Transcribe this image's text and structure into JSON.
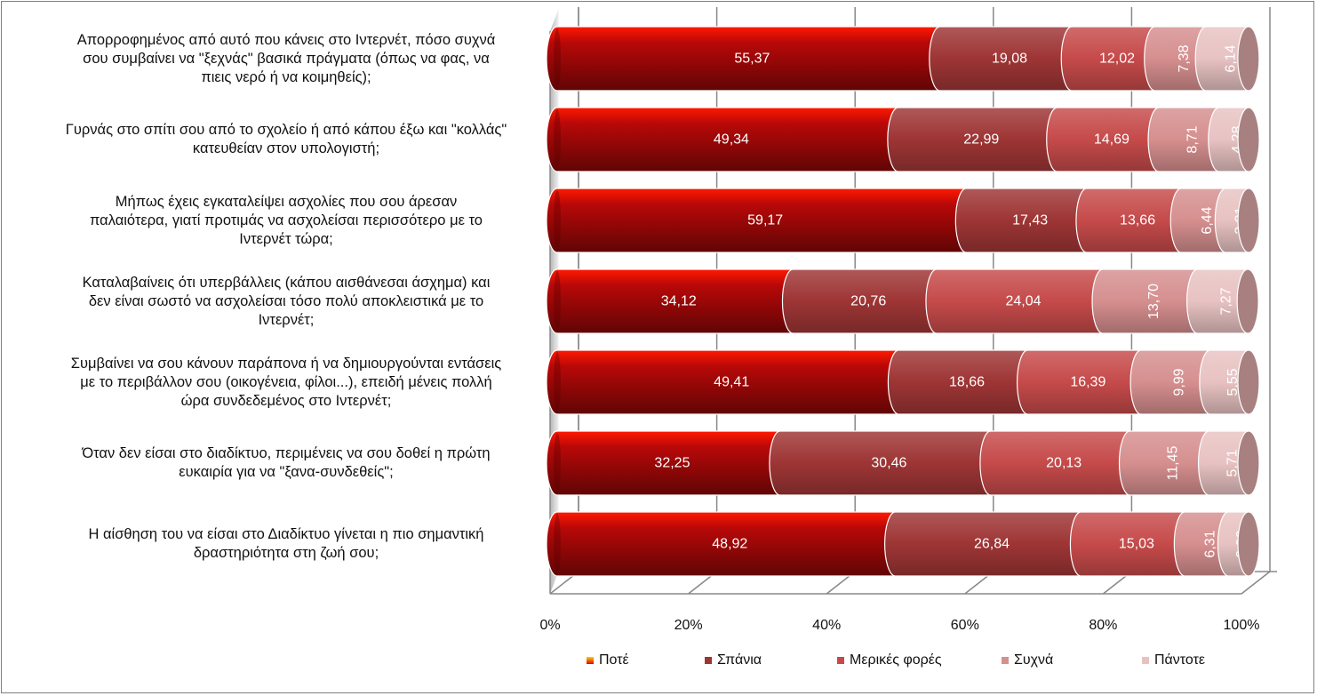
{
  "chart_data": {
    "type": "bar",
    "orientation": "horizontal",
    "stacked": "percent",
    "title": "",
    "xlabel": "",
    "ylabel": "",
    "xlim": [
      0,
      100
    ],
    "x_ticks": [
      "0%",
      "20%",
      "40%",
      "60%",
      "80%",
      "100%"
    ],
    "grid": true,
    "legend_position": "bottom",
    "categories": [
      "Απορροφημένος από αυτό που κάνεις στο Ιντερνέτ, πόσο συχνά σου συμβαίνει να \"ξεχνάς\" βασικά πράγματα (όπως να φας, να πιεις νερό ή να κοιμηθείς);",
      "Γυρνάς στο σπίτι σου από το σχολείο ή από κάπου έξω και \"κολλάς\" κατευθείαν στον υπολογιστή;",
      "Μήπως έχεις εγκαταλείψει ασχολίες που σου άρεσαν παλαιότερα, γιατί προτιμάς να ασχολείσαι περισσότερο με το Ιντερνέτ τώρα;",
      "Καταλαβαίνεις ότι υπερβάλλεις (κάπου αισθάνεσαι άσχημα) και δεν είναι σωστό να ασχολείσαι τόσο πολύ αποκλειστικά με το Ιντερνέτ;",
      "Συμβαίνει να σου κάνουν παράπονα ή να δημιουργούνται εντάσεις με το περιβάλλον σου (οικογένεια, φίλοι...), επειδή μένεις πολλή ώρα συνδεδεμένος στο Ιντερνέτ;",
      "Όταν δεν είσαι στο διαδίκτυο, περιμένεις να σου δοθεί η πρώτη ευκαιρία για να \"ξανα-συνδεθείς\";",
      "Η αίσθηση του να είσαι στο Διαδίκτυο γίνεται η πιο σημαντική δραστηριότητα στη ζωή σου;"
    ],
    "category_lines": [
      [
        "Απορροφημένος από αυτό που κάνεις στο Ιντερνέτ, πόσο συχνά",
        "σου συμβαίνει να \"ξεχνάς\" βασικά πράγματα (όπως να φας, να",
        "πιεις νερό ή να κοιμηθείς);"
      ],
      [
        "Γυρνάς στο σπίτι σου από το σχολείο ή από κάπου έξω και \"κολλάς\"",
        "κατευθείαν στον υπολογιστή;"
      ],
      [
        "Μήπως έχεις εγκαταλείψει ασχολίες που σου άρεσαν",
        "παλαιότερα, γιατί προτιμάς να ασχολείσαι περισσότερο με το",
        "Ιντερνέτ τώρα;"
      ],
      [
        "Καταλαβαίνεις ότι υπερβάλλεις (κάπου αισθάνεσαι άσχημα) και",
        "δεν είναι σωστό να ασχολείσαι τόσο πολύ αποκλειστικά με το",
        "Ιντερνέτ;"
      ],
      [
        "Συμβαίνει να σου κάνουν παράπονα ή να δημιουργούνται εντάσεις",
        "με το περιβάλλον σου (οικογένεια, φίλοι...), επειδή μένεις πολλή",
        "ώρα συνδεδεμένος στο Ιντερνέτ;"
      ],
      [
        "Όταν δεν είσαι στο διαδίκτυο, περιμένεις να σου δοθεί η πρώτη",
        "ευκαιρία για να \"ξανα-συνδεθείς\";"
      ],
      [
        "Η αίσθηση του να είσαι στο Διαδίκτυο γίνεται η πιο σημαντική",
        "δραστηριότητα στη ζωή σου;"
      ]
    ],
    "series": [
      {
        "name": "Ποτέ",
        "color": "#8b0d0d",
        "values": [
          55.37,
          49.34,
          59.17,
          34.12,
          49.41,
          32.25,
          48.92
        ],
        "labels": [
          "55,37",
          "49,34",
          "59,17",
          "34,12",
          "49,41",
          "32,25",
          "48,92"
        ],
        "label_rotated": false
      },
      {
        "name": "Σπάνια",
        "color": "#9e3535",
        "values": [
          19.08,
          22.99,
          17.43,
          20.76,
          18.66,
          30.46,
          26.84
        ],
        "labels": [
          "19,08",
          "22,99",
          "17,43",
          "20,76",
          "18,66",
          "30,46",
          "26,84"
        ],
        "label_rotated": false
      },
      {
        "name": "Μερικές φορές",
        "color": "#c64a4a",
        "values": [
          12.02,
          14.69,
          13.66,
          24.04,
          16.39,
          20.13,
          15.03
        ],
        "labels": [
          "12,02",
          "14,69",
          "13,66",
          "24,04",
          "16,39",
          "20,13",
          "15,03"
        ],
        "label_rotated": false
      },
      {
        "name": "Συχνά",
        "color": "#d68f8f",
        "values": [
          7.38,
          8.71,
          6.44,
          13.7,
          9.99,
          11.45,
          6.31
        ],
        "labels": [
          "7,38",
          "8,71",
          "6,44",
          "13,70",
          "9,99",
          "11,45",
          "6,31"
        ],
        "label_rotated": true
      },
      {
        "name": "Πάντοτε",
        "color": "#e8c2c2",
        "values": [
          6.14,
          4.28,
          3.31,
          7.27,
          5.55,
          5.71,
          2.9
        ],
        "labels": [
          "6,14",
          "4,28",
          "3,31",
          "7,27",
          "5,55",
          "5,71",
          "2,90"
        ],
        "label_rotated": true
      }
    ]
  }
}
